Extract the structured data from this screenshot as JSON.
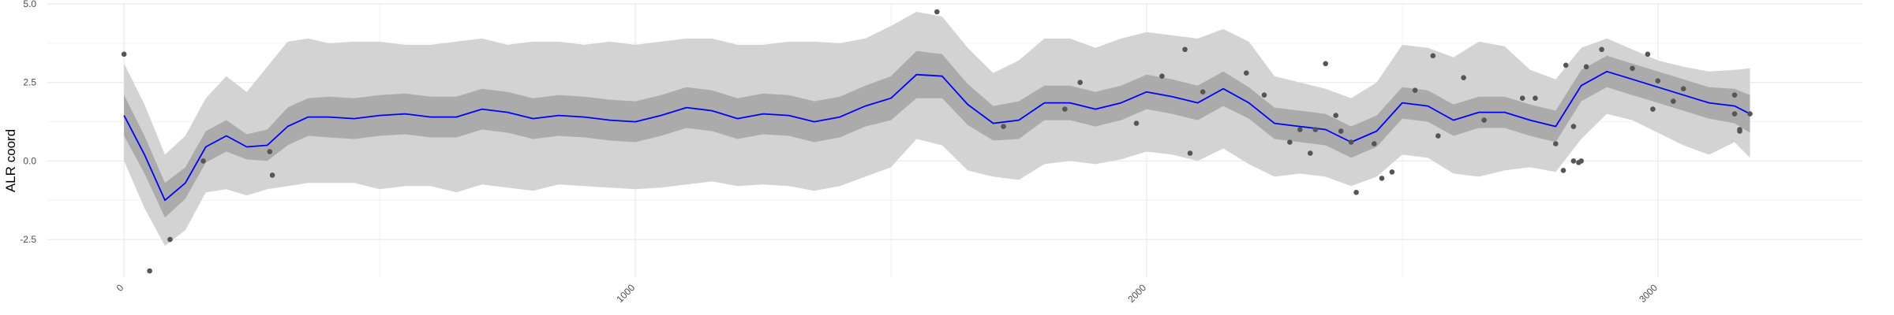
{
  "chart_data": {
    "type": "line",
    "title": "",
    "xlabel": "",
    "ylabel": "ALR coord",
    "xlim": [
      -150,
      3400
    ],
    "ylim": [
      -3.7,
      5.0
    ],
    "x_ticks": [
      0,
      1000,
      2000,
      3000
    ],
    "x_tick_labels": [
      "0",
      "1000",
      "2000",
      "3000"
    ],
    "y_ticks": [
      -2.5,
      0.0,
      2.5,
      5.0
    ],
    "y_tick_labels": [
      "-2.5",
      "0.0",
      "2.5",
      "5.0"
    ],
    "grid": true,
    "colors": {
      "line": "#0000ff",
      "inner_band": "#ababab",
      "outer_band": "#d3d3d3",
      "points": "#555555",
      "grid_major": "#e6e6e6",
      "grid_minor": "#f2f2f2"
    },
    "series": [
      {
        "kind": "line",
        "x": [
          0,
          40,
          80,
          120,
          160,
          200,
          240,
          280,
          320,
          360,
          400,
          450,
          500,
          550,
          600,
          650,
          700,
          750,
          800,
          850,
          900,
          950,
          1000,
          1050,
          1100,
          1150,
          1200,
          1250,
          1300,
          1350,
          1400,
          1450,
          1500,
          1550,
          1600,
          1650,
          1700,
          1750,
          1800,
          1850,
          1900,
          1950,
          2000,
          2050,
          2100,
          2150,
          2200,
          2250,
          2300,
          2350,
          2400,
          2450,
          2500,
          2550,
          2600,
          2650,
          2700,
          2750,
          2800,
          2850,
          2900,
          2950,
          3000,
          3050,
          3100,
          3150,
          3180
        ],
        "y": [
          1.45,
          0.2,
          -1.25,
          -0.7,
          0.45,
          0.8,
          0.45,
          0.5,
          1.1,
          1.4,
          1.4,
          1.35,
          1.45,
          1.5,
          1.4,
          1.4,
          1.65,
          1.55,
          1.35,
          1.45,
          1.4,
          1.3,
          1.25,
          1.45,
          1.7,
          1.6,
          1.35,
          1.5,
          1.45,
          1.25,
          1.4,
          1.75,
          2.0,
          2.75,
          2.7,
          1.8,
          1.2,
          1.3,
          1.85,
          1.85,
          1.65,
          1.85,
          2.2,
          2.05,
          1.85,
          2.3,
          1.85,
          1.2,
          1.1,
          1.0,
          0.6,
          0.95,
          1.85,
          1.75,
          1.3,
          1.55,
          1.55,
          1.3,
          1.1,
          2.4,
          2.85,
          2.6,
          2.35,
          2.1,
          1.85,
          1.75,
          1.5
        ]
      },
      {
        "kind": "inner_band",
        "x": [
          0,
          40,
          80,
          120,
          160,
          200,
          240,
          280,
          320,
          360,
          400,
          450,
          500,
          550,
          600,
          650,
          700,
          750,
          800,
          850,
          900,
          950,
          1000,
          1050,
          1100,
          1150,
          1200,
          1250,
          1300,
          1350,
          1400,
          1450,
          1500,
          1550,
          1600,
          1650,
          1700,
          1750,
          1800,
          1850,
          1900,
          1950,
          2000,
          2050,
          2100,
          2150,
          2200,
          2250,
          2300,
          2350,
          2400,
          2450,
          2500,
          2550,
          2600,
          2650,
          2700,
          2750,
          2800,
          2850,
          2900,
          2950,
          3000,
          3050,
          3100,
          3150,
          3180
        ],
        "upper": [
          2.1,
          0.8,
          -0.7,
          -0.2,
          0.95,
          1.3,
          0.85,
          1.0,
          1.7,
          2.0,
          2.05,
          2.0,
          2.1,
          2.15,
          2.05,
          2.05,
          2.3,
          2.2,
          2.0,
          2.1,
          2.05,
          1.95,
          1.9,
          2.1,
          2.35,
          2.25,
          2.0,
          2.15,
          2.1,
          1.9,
          2.05,
          2.4,
          2.7,
          3.5,
          3.4,
          2.45,
          1.75,
          1.9,
          2.4,
          2.4,
          2.2,
          2.4,
          2.75,
          2.6,
          2.4,
          2.85,
          2.35,
          1.7,
          1.6,
          1.5,
          1.1,
          1.45,
          2.35,
          2.25,
          1.8,
          2.05,
          2.05,
          1.8,
          1.6,
          2.9,
          3.35,
          3.1,
          2.85,
          2.6,
          2.35,
          2.3,
          2.1
        ]
      },
      {
        "kind": "inner_band_lower",
        "lower": [
          0.8,
          -0.4,
          -1.8,
          -1.2,
          -0.05,
          0.3,
          0.05,
          0.0,
          0.5,
          0.8,
          0.75,
          0.7,
          0.8,
          0.85,
          0.75,
          0.75,
          1.0,
          0.9,
          0.7,
          0.8,
          0.75,
          0.65,
          0.6,
          0.8,
          1.05,
          0.95,
          0.7,
          0.85,
          0.8,
          0.6,
          0.75,
          1.1,
          1.3,
          2.0,
          2.0,
          1.15,
          0.65,
          0.7,
          1.3,
          1.3,
          1.1,
          1.3,
          1.65,
          1.5,
          1.3,
          1.75,
          1.35,
          0.7,
          0.6,
          0.5,
          0.1,
          0.45,
          1.35,
          1.25,
          0.8,
          1.05,
          1.05,
          0.8,
          0.6,
          1.9,
          2.35,
          2.1,
          1.85,
          1.6,
          1.35,
          1.2,
          0.9
        ]
      },
      {
        "kind": "outer_band",
        "x": [
          0,
          40,
          80,
          120,
          160,
          200,
          240,
          280,
          320,
          360,
          400,
          450,
          500,
          550,
          600,
          650,
          700,
          750,
          800,
          850,
          900,
          950,
          1000,
          1050,
          1100,
          1150,
          1200,
          1250,
          1300,
          1350,
          1400,
          1450,
          1500,
          1550,
          1600,
          1650,
          1700,
          1750,
          1800,
          1850,
          1900,
          1950,
          2000,
          2050,
          2100,
          2150,
          2200,
          2250,
          2300,
          2350,
          2400,
          2450,
          2500,
          2550,
          2600,
          2650,
          2700,
          2750,
          2800,
          2850,
          2900,
          2950,
          3000,
          3050,
          3100,
          3150,
          3180
        ],
        "upper": [
          3.1,
          1.8,
          0.2,
          0.8,
          2.0,
          2.7,
          2.2,
          3.0,
          3.8,
          3.9,
          3.75,
          3.8,
          3.8,
          3.7,
          3.7,
          3.8,
          3.9,
          3.7,
          3.8,
          3.8,
          3.7,
          3.8,
          3.7,
          3.8,
          3.9,
          3.9,
          3.7,
          3.7,
          3.8,
          3.8,
          3.75,
          3.9,
          4.3,
          4.75,
          4.6,
          3.6,
          2.8,
          3.2,
          3.9,
          3.9,
          3.6,
          3.9,
          4.1,
          4.0,
          3.9,
          4.2,
          3.8,
          2.7,
          2.5,
          2.3,
          2.0,
          2.5,
          3.7,
          3.6,
          3.3,
          3.8,
          3.65,
          2.9,
          2.6,
          3.6,
          3.9,
          3.55,
          3.2,
          3.0,
          2.85,
          2.9,
          2.95
        ]
      },
      {
        "kind": "outer_band_lower",
        "lower": [
          0.0,
          -1.5,
          -2.7,
          -2.2,
          -1.0,
          -0.9,
          -1.1,
          -0.9,
          -0.8,
          -0.7,
          -0.7,
          -0.7,
          -0.9,
          -0.8,
          -0.8,
          -1.0,
          -0.75,
          -0.85,
          -0.95,
          -0.75,
          -0.8,
          -0.85,
          -0.9,
          -0.85,
          -0.75,
          -0.65,
          -0.8,
          -0.75,
          -0.8,
          -0.95,
          -0.8,
          -0.5,
          -0.2,
          0.7,
          0.5,
          -0.3,
          -0.5,
          -0.6,
          -0.1,
          0.0,
          -0.1,
          0.05,
          0.3,
          0.2,
          0.0,
          0.4,
          -0.1,
          -0.5,
          -0.4,
          -0.5,
          -0.8,
          -0.5,
          0.2,
          0.1,
          -0.4,
          -0.5,
          -0.3,
          -0.2,
          -0.35,
          0.7,
          1.5,
          1.3,
          0.9,
          0.5,
          0.2,
          0.6,
          0.1
        ]
      },
      {
        "kind": "points",
        "x": [
          0,
          50,
          90,
          155,
          285,
          290,
          1590,
          1720,
          1840,
          1870,
          1980,
          2030,
          2075,
          2085,
          2110,
          2195,
          2230,
          2280,
          2300,
          2320,
          2330,
          2350,
          2370,
          2380,
          2400,
          2410,
          2445,
          2460,
          2480,
          2525,
          2560,
          2570,
          2620,
          2660,
          2735,
          2760,
          2800,
          2815,
          2820,
          2835,
          2835,
          2845,
          2850,
          2860,
          2890,
          2950,
          2980,
          2990,
          3000,
          3030,
          3050,
          3150,
          3150,
          3160,
          3160,
          3180
        ],
        "y": [
          3.4,
          -3.5,
          -2.5,
          0.0,
          0.3,
          -0.45,
          4.75,
          1.1,
          1.65,
          2.5,
          1.2,
          2.7,
          3.55,
          0.25,
          2.2,
          2.8,
          2.1,
          0.6,
          1.0,
          0.25,
          1.0,
          3.1,
          1.45,
          0.95,
          0.6,
          -1.0,
          0.55,
          -0.55,
          -0.35,
          2.25,
          3.35,
          0.8,
          2.65,
          1.3,
          2.0,
          2.0,
          0.55,
          -0.3,
          3.05,
          1.1,
          0.0,
          -0.05,
          0.0,
          3.0,
          3.55,
          2.95,
          3.4,
          1.65,
          2.55,
          1.9,
          2.3,
          2.1,
          1.5,
          0.95,
          1.0,
          1.5
        ]
      }
    ]
  }
}
